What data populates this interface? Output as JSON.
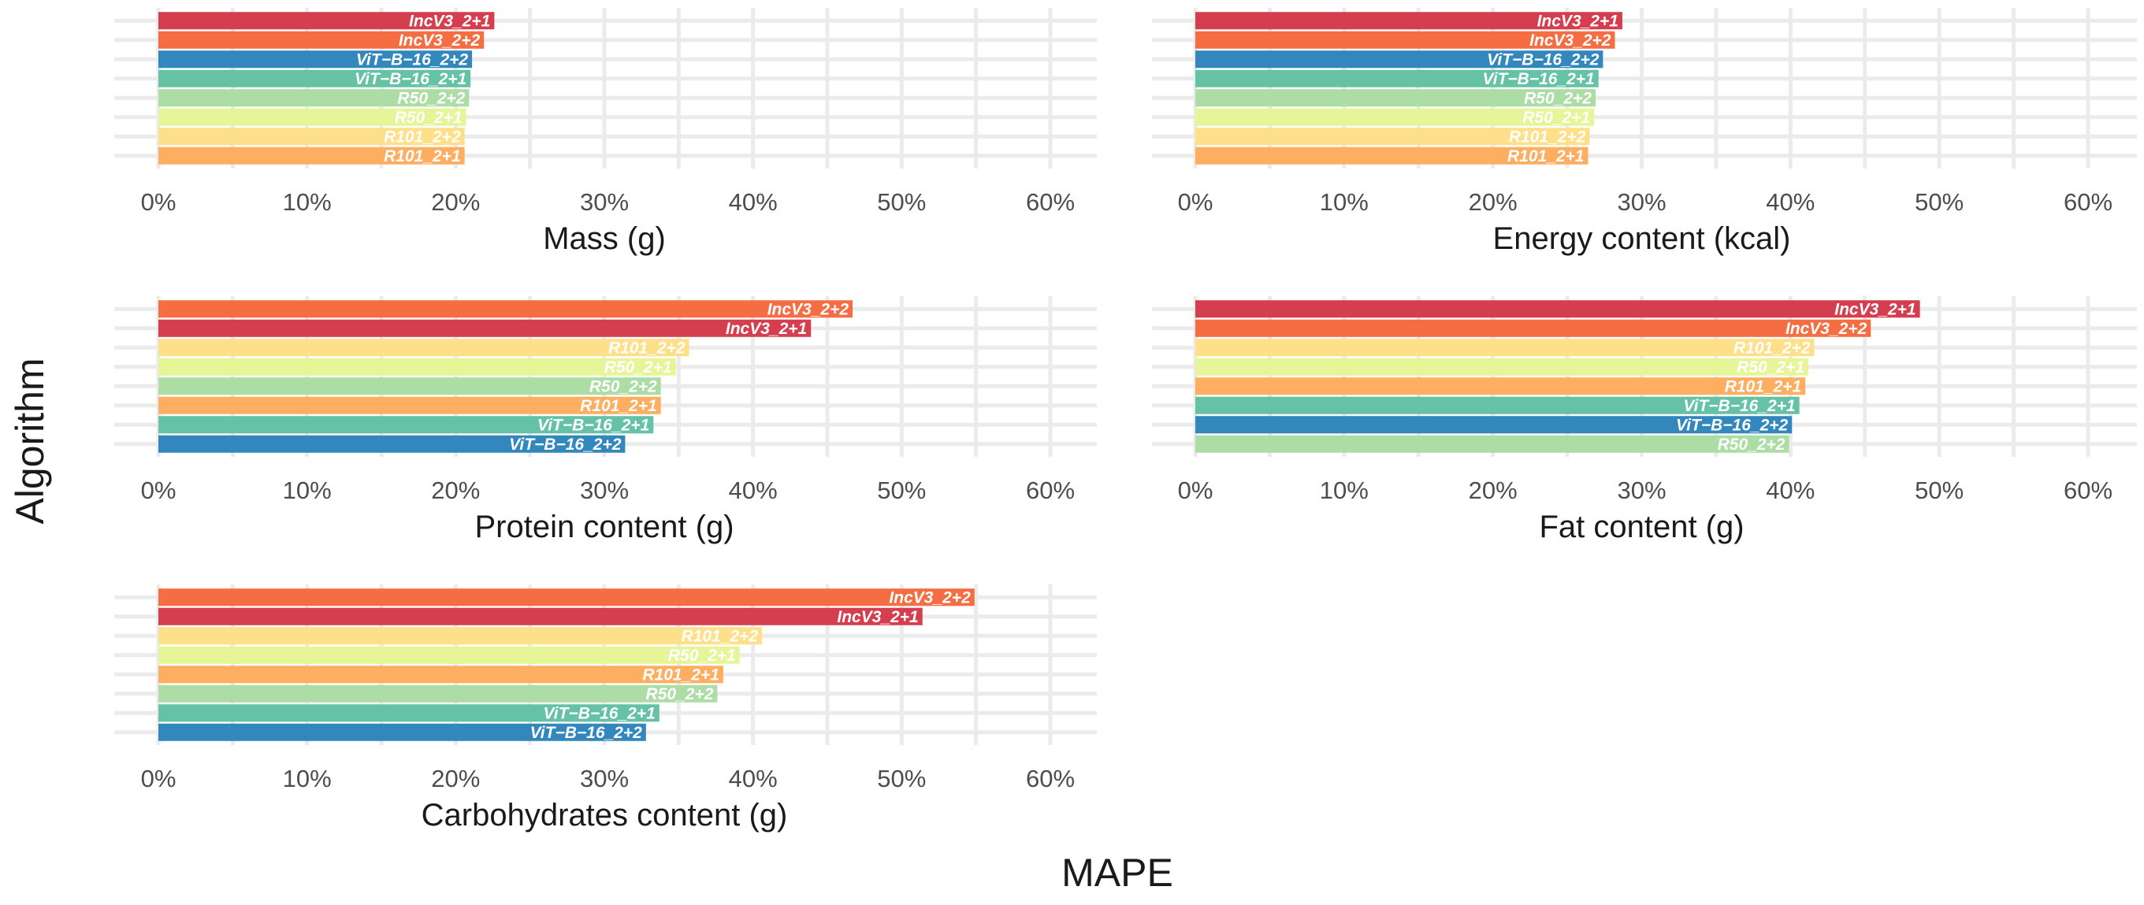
{
  "chart_data": {
    "type": "bar",
    "orientation": "horizontal",
    "xlabel": "MAPE",
    "ylabel": "Algorithm",
    "xlim": [
      0,
      60
    ],
    "xticks": [
      0,
      10,
      20,
      30,
      40,
      50,
      60
    ],
    "tick_suffix": "%",
    "grid": true,
    "colors": {
      "IncV3_2+1": "#d53e4f",
      "IncV3_2+2": "#f46d43",
      "R101_2+1": "#fdae61",
      "R101_2+2": "#fee08b",
      "R50_2+1": "#e6f598",
      "R50_2+2": "#abdda4",
      "ViT−B−16_2+1": "#66c2a5",
      "ViT−B−16_2+2": "#3288bd"
    },
    "panels": [
      {
        "title": "Mass (g)",
        "bars": [
          {
            "label": "IncV3_2+1",
            "value": 22.6
          },
          {
            "label": "IncV3_2+2",
            "value": 21.9
          },
          {
            "label": "ViT−B−16_2+2",
            "value": 21.1
          },
          {
            "label": "ViT−B−16_2+1",
            "value": 21.0
          },
          {
            "label": "R50_2+2",
            "value": 20.9
          },
          {
            "label": "R50_2+1",
            "value": 20.7
          },
          {
            "label": "R101_2+2",
            "value": 20.6
          },
          {
            "label": "R101_2+1",
            "value": 20.6
          }
        ]
      },
      {
        "title": "Energy content (kcal)",
        "bars": [
          {
            "label": "IncV3_2+1",
            "value": 28.7
          },
          {
            "label": "IncV3_2+2",
            "value": 28.2
          },
          {
            "label": "ViT−B−16_2+2",
            "value": 27.4
          },
          {
            "label": "ViT−B−16_2+1",
            "value": 27.1
          },
          {
            "label": "R50_2+2",
            "value": 26.9
          },
          {
            "label": "R50_2+1",
            "value": 26.8
          },
          {
            "label": "R101_2+2",
            "value": 26.5
          },
          {
            "label": "R101_2+1",
            "value": 26.4
          }
        ]
      },
      {
        "title": "Protein content (g)",
        "bars": [
          {
            "label": "IncV3_2+2",
            "value": 46.7
          },
          {
            "label": "IncV3_2+1",
            "value": 43.9
          },
          {
            "label": "R101_2+2",
            "value": 35.7
          },
          {
            "label": "R50_2+1",
            "value": 34.8
          },
          {
            "label": "R50_2+2",
            "value": 33.8
          },
          {
            "label": "R101_2+1",
            "value": 33.8
          },
          {
            "label": "ViT−B−16_2+1",
            "value": 33.3
          },
          {
            "label": "ViT−B−16_2+2",
            "value": 31.4
          }
        ]
      },
      {
        "title": "Fat content (g)",
        "bars": [
          {
            "label": "IncV3_2+1",
            "value": 48.7
          },
          {
            "label": "IncV3_2+2",
            "value": 45.4
          },
          {
            "label": "R101_2+2",
            "value": 41.6
          },
          {
            "label": "R50_2+1",
            "value": 41.2
          },
          {
            "label": "R101_2+1",
            "value": 41.0
          },
          {
            "label": "ViT−B−16_2+1",
            "value": 40.6
          },
          {
            "label": "ViT−B−16_2+2",
            "value": 40.1
          },
          {
            "label": "R50_2+2",
            "value": 39.9
          }
        ]
      },
      {
        "title": "Carbohydrates content (g)",
        "bars": [
          {
            "label": "IncV3_2+2",
            "value": 54.9
          },
          {
            "label": "IncV3_2+1",
            "value": 51.4
          },
          {
            "label": "R101_2+2",
            "value": 40.6
          },
          {
            "label": "R50_2+1",
            "value": 39.1
          },
          {
            "label": "R101_2+1",
            "value": 38.0
          },
          {
            "label": "R50_2+2",
            "value": 37.6
          },
          {
            "label": "ViT−B−16_2+1",
            "value": 33.7
          },
          {
            "label": "ViT−B−16_2+2",
            "value": 32.8
          }
        ]
      }
    ]
  }
}
